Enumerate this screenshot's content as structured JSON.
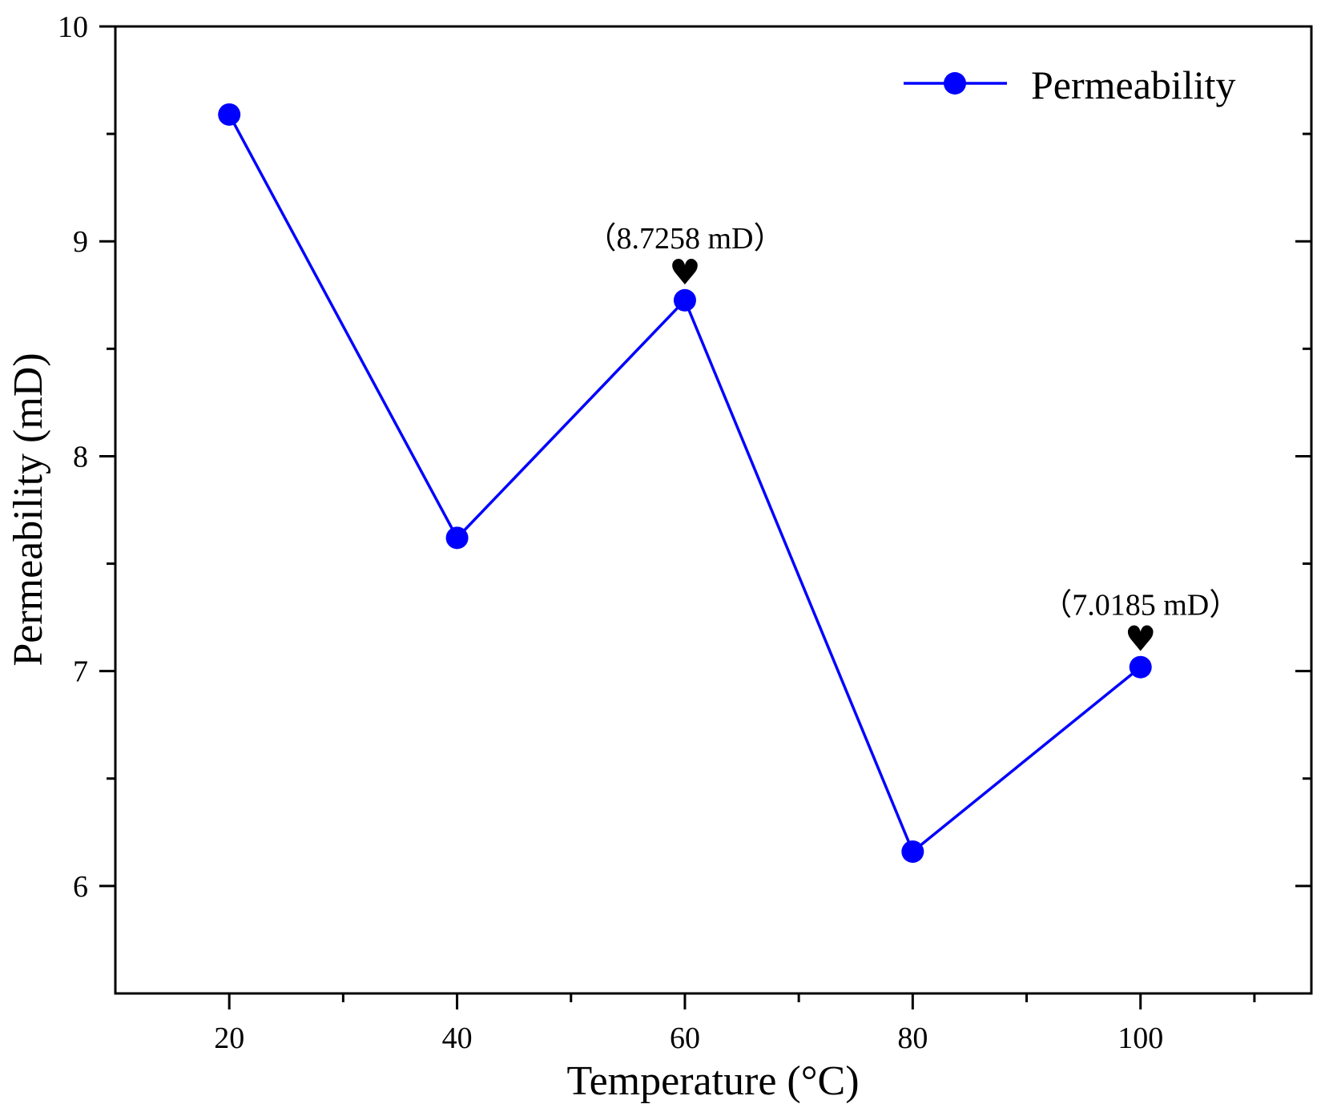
{
  "chart_data": {
    "type": "line",
    "title": "",
    "xlabel": "Temperature (°C)",
    "ylabel": "Permeability (mD)",
    "xlim": [
      10,
      115
    ],
    "ylim": [
      5.5,
      10
    ],
    "x_ticks": [
      20,
      40,
      60,
      80,
      100
    ],
    "x_tick_labels": [
      "20",
      "40",
      "60",
      "80",
      "100"
    ],
    "x_minor_ticks": [
      30,
      50,
      70,
      90,
      110
    ],
    "y_ticks": [
      6,
      7,
      8,
      9,
      10
    ],
    "y_tick_labels": [
      "6",
      "7",
      "8",
      "9",
      "10"
    ],
    "y_minor_ticks": [
      6.5,
      7.5,
      8.5,
      9.5
    ],
    "grid": false,
    "legend_position": "top-right",
    "series": [
      {
        "name": "Permeability",
        "color": "#0000ff",
        "marker": "circle",
        "x": [
          20,
          40,
          60,
          80,
          100
        ],
        "values": [
          9.59,
          7.62,
          8.7258,
          6.16,
          7.0185
        ]
      }
    ],
    "annotations": [
      {
        "x": 60,
        "y": 8.7258,
        "text": "（8.7258 mD）",
        "marker_icon": "heart-icon",
        "glyph": "♥"
      },
      {
        "x": 100,
        "y": 7.0185,
        "text": "（7.0185 mD）",
        "marker_icon": "heart-icon",
        "glyph": "♥"
      }
    ]
  },
  "colors": {
    "line": "#0000ff",
    "axes": "#000000",
    "background": "#ffffff"
  }
}
